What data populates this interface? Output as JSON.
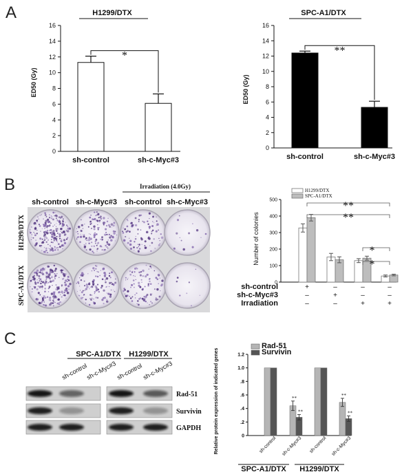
{
  "panel_letters": {
    "a": "A",
    "b": "B",
    "c": "C"
  },
  "chart_data": [
    {
      "id": "A-left",
      "type": "bar",
      "title": "H1299/DTX",
      "categories": [
        "sh-control",
        "sh-c-Myc#3"
      ],
      "values": [
        11.3,
        6.1
      ],
      "errors": [
        0.8,
        1.2
      ],
      "ylabel": "ED50 (Gy)",
      "ylim": [
        0,
        16
      ],
      "yticks": [
        "0",
        "2",
        "4",
        "6",
        "8",
        "10",
        "12",
        "14",
        "16"
      ],
      "bar_colors": [
        "#ffffff",
        "#ffffff"
      ],
      "significance": "*"
    },
    {
      "id": "A-right",
      "type": "bar",
      "title": "SPC-A1/DTX",
      "categories": [
        "sh-control",
        "sh-c-Myc#3"
      ],
      "values": [
        12.4,
        5.3
      ],
      "errors": [
        0.25,
        0.8
      ],
      "ylabel": "ED50 (Gy)",
      "ylim": [
        0,
        16
      ],
      "yticks": [
        "0",
        "2",
        "4",
        "6",
        "8",
        "10",
        "12",
        "14",
        "16"
      ],
      "bar_colors": [
        "#000000",
        "#000000"
      ],
      "significance": "**"
    },
    {
      "id": "B",
      "type": "bar",
      "categories": [
        "sh-control",
        "sh-c-Myc#3",
        "sh-control + Irradiation",
        "sh-c-Myc#3 + Irradiation"
      ],
      "series": [
        {
          "name": "H1299/DTX",
          "color": "#ffffff",
          "values": [
            328,
            152,
            130,
            37
          ],
          "errors": [
            25,
            22,
            12,
            6
          ]
        },
        {
          "name": "SPC-A1/DTX",
          "color": "#bdbdbd",
          "values": [
            390,
            135,
            145,
            43
          ],
          "errors": [
            20,
            18,
            12,
            5
          ]
        }
      ],
      "ylabel": "Number of colonies",
      "ylim": [
        0,
        500
      ],
      "yticks": [
        "0",
        "100",
        "200",
        "300",
        "400",
        "500"
      ],
      "conditions": [
        {
          "label": "sh-control",
          "signs": [
            "+",
            "–",
            "–",
            "–"
          ]
        },
        {
          "label": "sh-c-Myc#3",
          "signs": [
            "–",
            "+",
            "–",
            "–"
          ]
        },
        {
          "label": "Irradiation",
          "signs": [
            "–",
            "–",
            "+",
            "+"
          ]
        }
      ],
      "significance": [
        "**",
        "**",
        "*",
        "*"
      ]
    },
    {
      "id": "C",
      "type": "bar",
      "categories": [
        "SPC-A1/DTX sh-control",
        "SPC-A1/DTX sh-c-Myc#3",
        "H1299/DTX sh-control",
        "H1299/DTX sh-c-Myc#3"
      ],
      "series": [
        {
          "name": "Rad-51",
          "color": "#b5b5b5",
          "values": [
            1.0,
            0.44,
            1.0,
            0.49
          ],
          "errors": [
            0,
            0.07,
            0,
            0.06
          ]
        },
        {
          "name": "Survivin",
          "color": "#555555",
          "values": [
            1.0,
            0.27,
            1.0,
            0.25
          ],
          "errors": [
            0,
            0.04,
            0,
            0.04
          ]
        }
      ],
      "ylabel": "Relative protein expression of indicated genes",
      "ylim": [
        0,
        1.2
      ],
      "yticks": [
        "0",
        ".2",
        ".4",
        ".6",
        ".8",
        "1.0",
        "1.2"
      ],
      "xtick_labels": [
        "sh-control",
        "sh-c-Myc#3",
        "sh-control",
        "sh-c-Myc#3"
      ],
      "groups": [
        "SPC-A1/DTX",
        "H1299/DTX"
      ],
      "significance": [
        "**",
        "**",
        "**",
        "**"
      ]
    }
  ],
  "panel_b": {
    "plate_columns": [
      "sh-control",
      "sh-c-Myc#3",
      "sh-control",
      "sh-c-Myc#3"
    ],
    "irradiation_header": "Irradiation (4.0Gy)",
    "plate_rows": [
      "H1299/DTX",
      "SPC-A1/DTX"
    ],
    "colony_density": [
      [
        0.9,
        0.55,
        0.35,
        0.05
      ],
      [
        0.85,
        0.45,
        0.4,
        0.03
      ]
    ]
  },
  "panel_c": {
    "groups": [
      "SPC-A1/DTX",
      "H1299/DTX"
    ],
    "lane_labels": [
      "sh-control",
      "sh-c-Myc#3",
      "sh-control",
      "sh-c-Myc#3"
    ],
    "rows": [
      "Rad-51",
      "Survivin",
      "GAPDH"
    ]
  }
}
